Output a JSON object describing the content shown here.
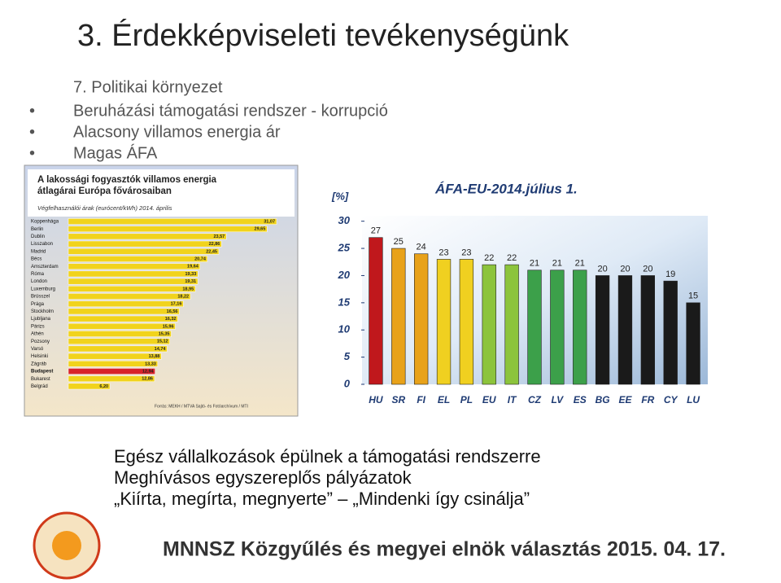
{
  "title": "3. Érdekképviseleti tevékenységünk",
  "section": "7. Politikai környezet",
  "bullets": [
    "Beruházási támogatási rendszer - korrupció",
    "Alacsony villamos energia ár",
    "Magas ÁFA"
  ],
  "bottom_bullets": [
    "Egész vállalkozások épülnek a támogatási rendszerre",
    "Meghívásos egyszereplős pályázatok",
    "„Kiírta, megírta, megnyerte” – „Mindenki így csinálja”"
  ],
  "footer": "MNNSZ Közgyűlés és megyei elnök választás 2015. 04. 17.",
  "chart_data": [
    {
      "type": "hbar",
      "title": "A lakossági fogyasztók villamos energia átlagárai Európa fővárosaiban",
      "subtitle": "Végfelhasználói árak (eurócent/kWh) 2014. április",
      "source": "Forrás: MEKH / MTVA Sajtó- és Fotóarchívum / MTI",
      "categories": [
        "Koppenhága",
        "Berlin",
        "Dublin",
        "Lisszabon",
        "Madrid",
        "Bécs",
        "Amszterdam",
        "Róma",
        "London",
        "Luxemburg",
        "Brüsszel",
        "Prága",
        "Stockholm",
        "Ljubljana",
        "Párizs",
        "Athén",
        "Pozsony",
        "Varsó",
        "Helsinki",
        "Zágráb",
        "Budapest",
        "Bukarest",
        "Belgrád"
      ],
      "values": [
        31.07,
        29.65,
        23.57,
        22.86,
        22.45,
        20.74,
        19.64,
        19.33,
        19.31,
        18.95,
        18.22,
        17.16,
        16.56,
        16.32,
        15.96,
        15.35,
        15.12,
        14.74,
        13.88,
        13.33,
        12.94,
        12.86,
        6.2
      ],
      "value_labels": [
        "31,07",
        "29,65",
        "23,57",
        "22,86",
        "22,45",
        "20,74",
        "19,64",
        "19,33",
        "19,31",
        "18,95",
        "18,22",
        "17,16",
        "16,56",
        "16,32",
        "15,96",
        "15,35",
        "15,12",
        "14,74",
        "13,88",
        "13,33",
        "12,94",
        "12,86",
        "6,20"
      ],
      "colors": [
        "#f1d31c",
        "#f1d31c",
        "#f1d31c",
        "#f1d31c",
        "#f1d31c",
        "#f1d31c",
        "#f1d31c",
        "#f1d31c",
        "#f1d31c",
        "#f1d31c",
        "#f1d31c",
        "#f1d31c",
        "#f1d31c",
        "#f1d31c",
        "#f1d31c",
        "#f1d31c",
        "#f1d31c",
        "#f1d31c",
        "#f1d31c",
        "#f1d31c",
        "#d8232a",
        "#f1d31c",
        "#f1d31c"
      ]
    },
    {
      "type": "bar",
      "title": "ÁFA-EU-2014.július 1.",
      "ylabel": "[%]",
      "categories": [
        "HU",
        "SR",
        "FI",
        "EL",
        "PL",
        "EU",
        "IT",
        "CZ",
        "LV",
        "ES",
        "BG",
        "EE",
        "FR",
        "CY",
        "LU"
      ],
      "values": [
        27,
        25,
        24,
        23,
        23,
        22,
        22,
        21,
        21,
        21,
        20,
        20,
        20,
        19,
        15
      ],
      "colors": [
        "#c0181c",
        "#e8a21a",
        "#e8a21a",
        "#f0d020",
        "#f0d020",
        "#8cc43c",
        "#8cc43c",
        "#3ca04a",
        "#3ca04a",
        "#3ca04a",
        "#1a1a1a",
        "#1a1a1a",
        "#1a1a1a",
        "#1a1a1a",
        "#1a1a1a"
      ],
      "ylim": [
        0,
        31
      ],
      "yticks": [
        0,
        5,
        10,
        15,
        20,
        25,
        30
      ]
    }
  ]
}
